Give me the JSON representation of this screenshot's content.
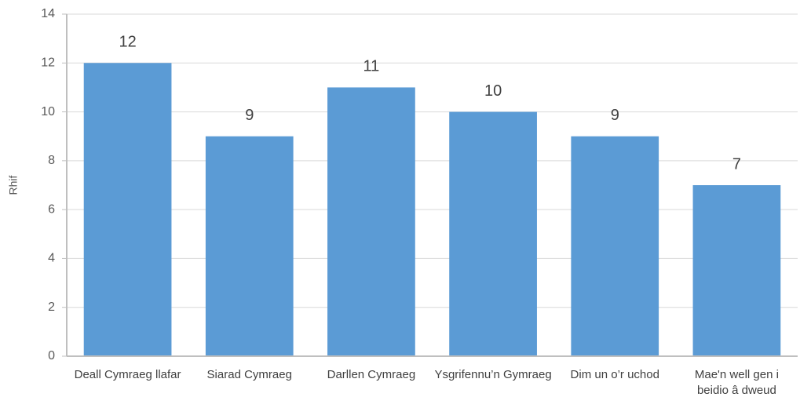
{
  "chart_data": {
    "type": "bar",
    "y_label": "Rhif",
    "categories": [
      "Deall Cymraeg llafar",
      "Siarad Cymraeg",
      "Darllen Cymraeg",
      "Ysgrifennu’n Gymraeg",
      "Dim un o’r uchod",
      "Mae'n well gen i beidio â dweud"
    ],
    "values": [
      12,
      9,
      11,
      10,
      9,
      7
    ],
    "color": "#5b9bd5",
    "ylim": [
      0,
      14
    ],
    "yticks": [
      0,
      2,
      4,
      6,
      8,
      10,
      12,
      14
    ],
    "grid": true
  }
}
